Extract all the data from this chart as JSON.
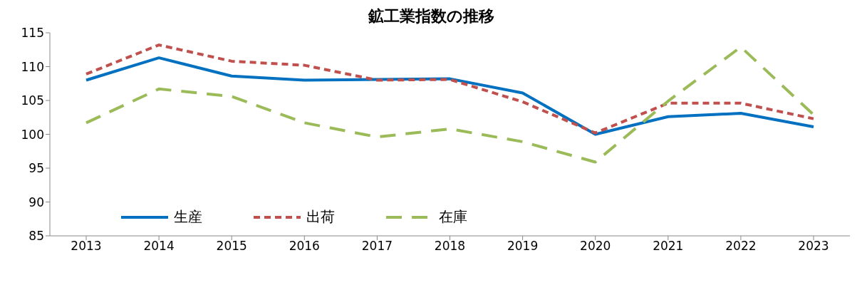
{
  "chart_data": {
    "type": "line",
    "title": "鉱工業指数の推移",
    "categories": [
      "2013",
      "2014",
      "2015",
      "2016",
      "2017",
      "2018",
      "2019",
      "2020",
      "2021",
      "2022",
      "2023"
    ],
    "series": [
      {
        "name": "生産",
        "color": "#0070c0",
        "line_style": "solid",
        "values": [
          108.0,
          111.3,
          108.6,
          108.0,
          108.1,
          108.2,
          106.1,
          100.0,
          102.6,
          103.1,
          101.1
        ]
      },
      {
        "name": "出荷",
        "color": "#c0504d",
        "line_style": "dashed",
        "values": [
          108.9,
          113.2,
          110.8,
          110.2,
          108.0,
          108.1,
          104.8,
          100.2,
          104.6,
          104.6,
          102.3
        ]
      },
      {
        "name": "在庫",
        "color": "#9bbb59",
        "line_style": "dashed",
        "values": [
          101.7,
          106.7,
          105.6,
          101.7,
          99.6,
          100.8,
          98.9,
          95.9,
          104.9,
          112.9,
          102.9
        ]
      }
    ],
    "ylim": [
      85,
      115
    ],
    "yticks": [
      85,
      90,
      95,
      100,
      105,
      110,
      115
    ],
    "legend": "bottom left",
    "marker": "none"
  }
}
